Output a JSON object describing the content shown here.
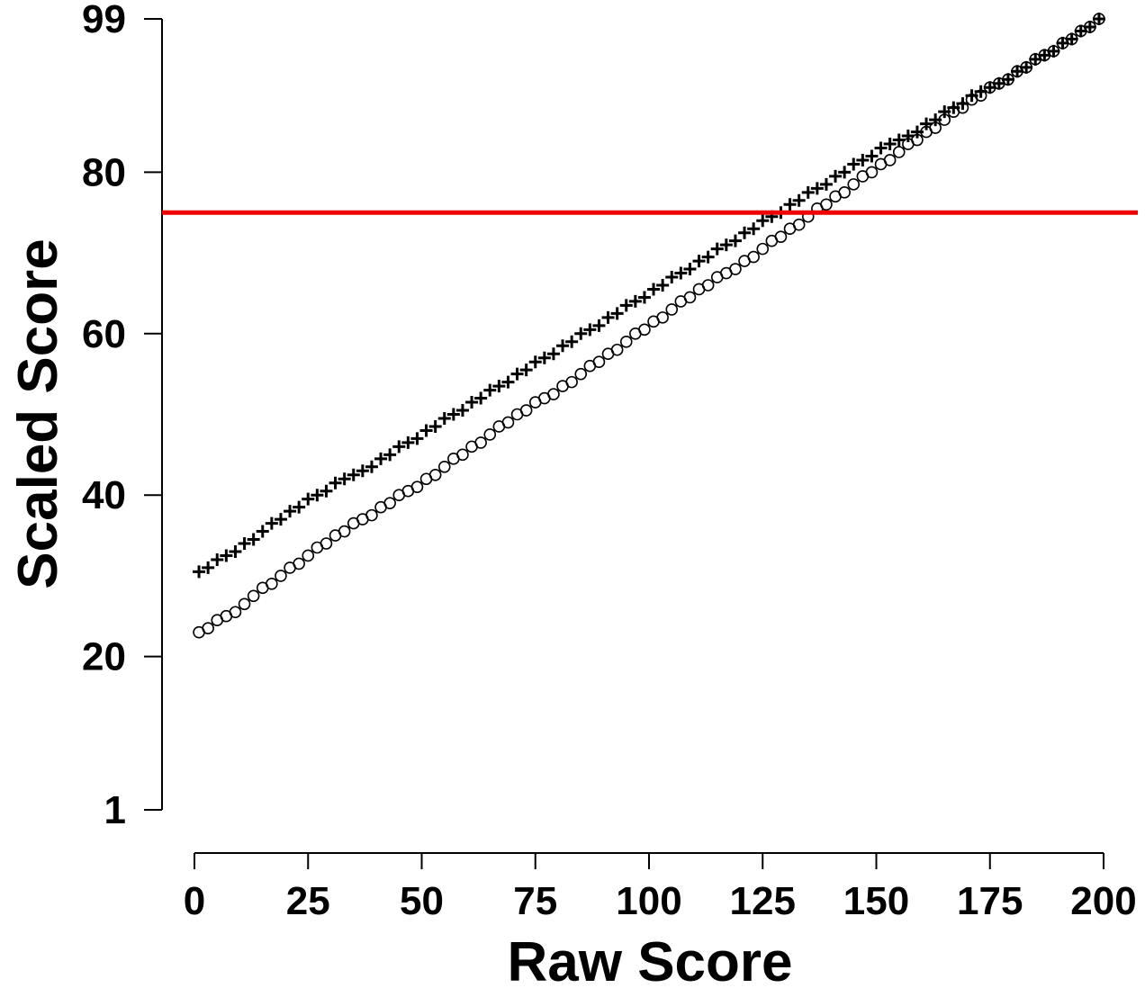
{
  "chart_data": {
    "type": "scatter",
    "title": "",
    "xlabel": "Raw Score",
    "ylabel": "Scaled Score",
    "xlim": [
      0,
      200
    ],
    "ylim": [
      1,
      99
    ],
    "xticks": [
      0,
      25,
      50,
      75,
      100,
      125,
      150,
      175,
      200
    ],
    "yticks": [
      1,
      20,
      40,
      60,
      80,
      99
    ],
    "grid": false,
    "reference_line": {
      "y": 75,
      "color": "#ee0000"
    },
    "series": [
      {
        "marker": "plus",
        "x": [
          1,
          10,
          20,
          30,
          40,
          50,
          60,
          70,
          80,
          90,
          100,
          110,
          120,
          130,
          140,
          150,
          160,
          170,
          180,
          190,
          199
        ],
        "y": [
          30.5,
          33.5,
          37.5,
          41,
          44,
          47.5,
          51,
          54.5,
          58,
          61.5,
          65,
          68.5,
          72,
          75.5,
          79,
          82.5,
          85.5,
          89,
          92,
          95.5,
          98.8
        ]
      },
      {
        "marker": "circle",
        "x": [
          1,
          10,
          20,
          30,
          40,
          50,
          60,
          70,
          80,
          90,
          100,
          110,
          120,
          130,
          140,
          150,
          160,
          170,
          180,
          190,
          199
        ],
        "y": [
          23,
          26,
          30.5,
          34.5,
          38,
          41.5,
          45.5,
          49.5,
          53,
          57,
          61,
          65,
          68.5,
          72.5,
          76.5,
          80.5,
          84.5,
          88.5,
          92,
          95.5,
          99
        ]
      }
    ]
  }
}
